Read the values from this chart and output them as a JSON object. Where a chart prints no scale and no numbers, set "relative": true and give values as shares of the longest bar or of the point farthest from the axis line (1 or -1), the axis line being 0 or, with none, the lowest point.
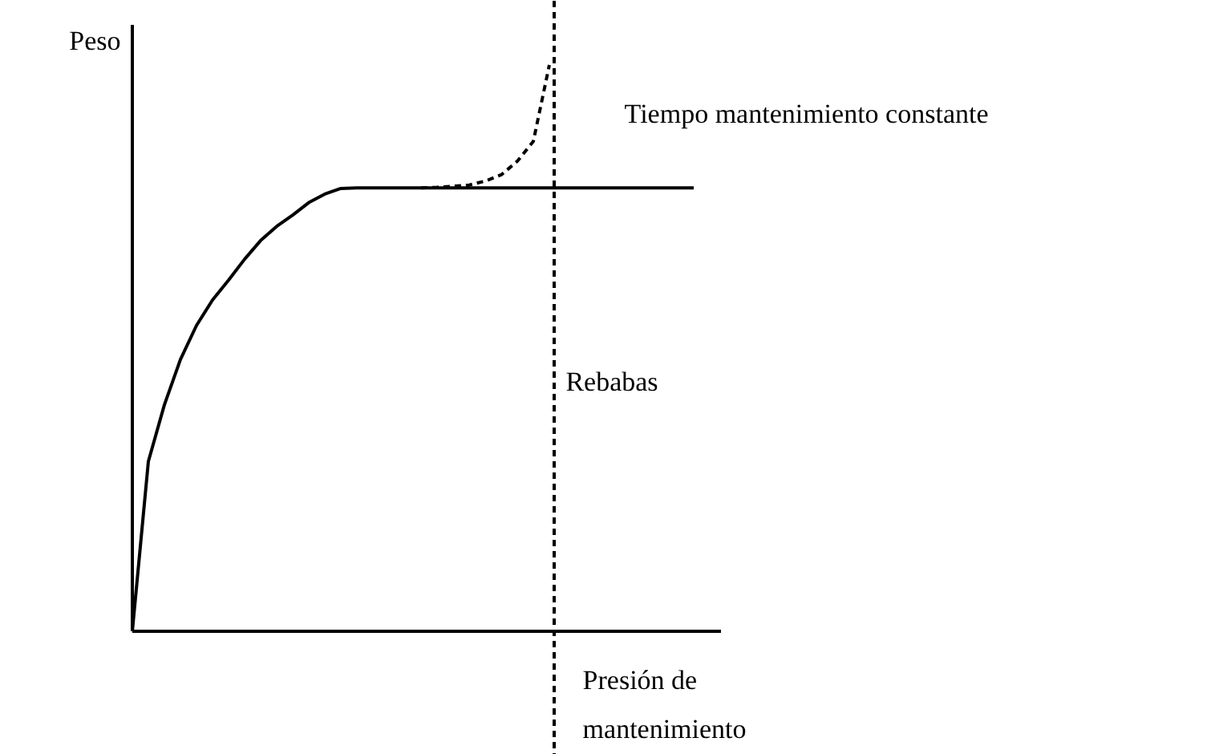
{
  "chart_data": {
    "type": "line",
    "relative": true,
    "xlabel": "Presión de\nmantenimiento",
    "ylabel": "Peso",
    "tick_labels": false,
    "grid": false,
    "marker": "none",
    "categories": [
      null,
      null,
      null,
      null,
      null,
      null,
      null,
      null,
      null,
      null,
      null,
      null,
      null,
      null,
      null,
      null,
      null,
      null,
      null,
      null,
      null,
      null,
      null,
      null,
      null,
      null,
      null,
      null,
      null,
      null,
      null,
      null,
      null,
      null,
      null,
      null
    ],
    "series": [
      {
        "name": "Tiempo mantenimiento constante",
        "color": "#000000",
        "line_style": "solid",
        "values": [
          0,
          0.3,
          0.4,
          0.48,
          0.54,
          0.585,
          0.62,
          0.657,
          0.69,
          0.715,
          0.735,
          0.757,
          0.772,
          0.782,
          0.783,
          0.783,
          0.783,
          0.783,
          0.783,
          0.783,
          0.783,
          0.783,
          0.783,
          0.783,
          0.783,
          0.783,
          0.783,
          0.783,
          0.783,
          0.783,
          0.783,
          0.783,
          0.783,
          0.783,
          0.783,
          0.783
        ]
      },
      {
        "color": "#000000",
        "line_style": "dashed",
        "values": [
          null,
          null,
          null,
          null,
          null,
          null,
          null,
          null,
          null,
          null,
          null,
          null,
          null,
          null,
          null,
          null,
          null,
          null,
          0.783,
          0.784,
          0.786,
          0.788,
          0.795,
          0.806,
          0.83,
          0.865,
          1.0,
          null,
          null,
          null,
          null,
          null,
          null,
          null,
          null,
          null
        ]
      }
    ],
    "ref_lines": [
      {
        "axis": "x",
        "label": "Rebabas",
        "line_style": "dashed",
        "color": "#000000"
      }
    ]
  }
}
